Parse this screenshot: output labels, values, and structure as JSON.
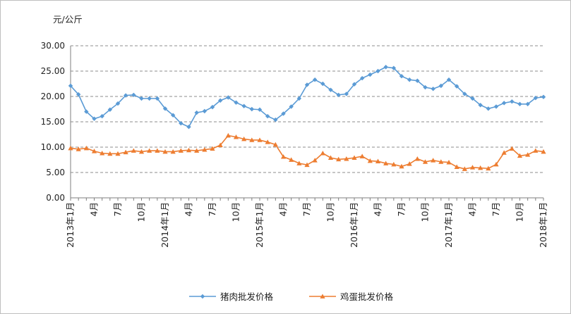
{
  "chart_data": {
    "type": "line",
    "title": "",
    "ylabel": "元/公斤",
    "xlabel": "",
    "ylim": [
      0,
      30
    ],
    "yticks": [
      "0.00",
      "5.00",
      "10.00",
      "15.00",
      "20.00",
      "25.00",
      "30.00"
    ],
    "grid": true,
    "legend_position": "bottom",
    "x_tick_labels": [
      {
        "index": 0,
        "label": "2013年1月"
      },
      {
        "index": 3,
        "label": "4月"
      },
      {
        "index": 6,
        "label": "7月"
      },
      {
        "index": 9,
        "label": "10月"
      },
      {
        "index": 12,
        "label": "2014年1月"
      },
      {
        "index": 15,
        "label": "4月"
      },
      {
        "index": 18,
        "label": "7月"
      },
      {
        "index": 21,
        "label": "10月"
      },
      {
        "index": 24,
        "label": "2015年1月"
      },
      {
        "index": 27,
        "label": "4月"
      },
      {
        "index": 30,
        "label": "7月"
      },
      {
        "index": 33,
        "label": "10月"
      },
      {
        "index": 36,
        "label": "2016年1月"
      },
      {
        "index": 39,
        "label": "4月"
      },
      {
        "index": 42,
        "label": "7月"
      },
      {
        "index": 45,
        "label": "10月"
      },
      {
        "index": 48,
        "label": "2017年1月"
      },
      {
        "index": 51,
        "label": "4月"
      },
      {
        "index": 54,
        "label": "7月"
      },
      {
        "index": 57,
        "label": "10月"
      },
      {
        "index": 60,
        "label": "2018年1月"
      }
    ],
    "series": [
      {
        "name": "猪肉批发价格",
        "color": "#5b9bd5",
        "marker": "diamond",
        "values": [
          22.1,
          20.4,
          17.0,
          15.6,
          16.1,
          17.4,
          18.6,
          20.2,
          20.3,
          19.6,
          19.6,
          19.6,
          17.6,
          16.3,
          14.7,
          14.0,
          16.8,
          17.1,
          17.9,
          19.2,
          19.8,
          18.8,
          18.1,
          17.5,
          17.4,
          16.1,
          15.4,
          16.6,
          18.0,
          19.6,
          22.3,
          23.3,
          22.5,
          21.3,
          20.3,
          20.5,
          22.4,
          23.6,
          24.3,
          25.0,
          25.8,
          25.6,
          24.0,
          23.3,
          23.1,
          21.8,
          21.5,
          22.1,
          23.3,
          22.0,
          20.5,
          19.6,
          18.3,
          17.6,
          18.0,
          18.7,
          19.0,
          18.5,
          18.5,
          19.7,
          19.9
        ]
      },
      {
        "name": "鸡蛋批发价格",
        "color": "#ed7d31",
        "marker": "triangle",
        "values": [
          9.8,
          9.6,
          9.8,
          9.2,
          8.8,
          8.7,
          8.7,
          9.0,
          9.3,
          9.1,
          9.3,
          9.3,
          9.1,
          9.1,
          9.3,
          9.4,
          9.3,
          9.5,
          9.7,
          10.4,
          12.3,
          12.0,
          11.6,
          11.4,
          11.4,
          11.0,
          10.5,
          8.1,
          7.5,
          6.8,
          6.5,
          7.4,
          8.8,
          7.9,
          7.6,
          7.7,
          7.9,
          8.2,
          7.3,
          7.2,
          6.8,
          6.6,
          6.2,
          6.7,
          7.7,
          7.1,
          7.4,
          7.1,
          7.0,
          6.1,
          5.7,
          6.0,
          5.9,
          5.8,
          6.6,
          8.9,
          9.7,
          8.3,
          8.5,
          9.3,
          9.1
        ]
      }
    ]
  }
}
